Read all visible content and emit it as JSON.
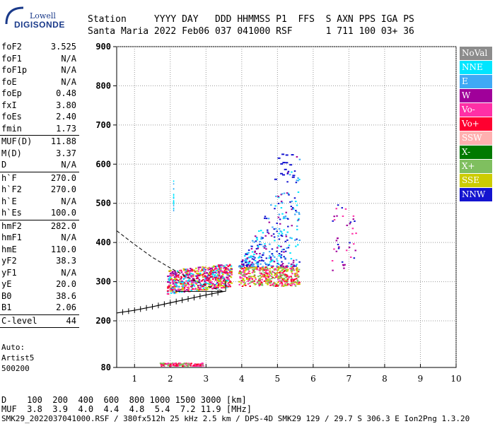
{
  "logo": {
    "line1": "Lowell",
    "line2": "DIGISONDE"
  },
  "header": {
    "columns": [
      "Station",
      "YYYY",
      "DAY",
      "DDD",
      "HHMMSS",
      "P1",
      "FFS",
      "S",
      "AXN",
      "PPS",
      "IGA",
      "PS"
    ],
    "values": [
      "Santa Maria",
      "2022",
      "Feb06",
      "037",
      "041000",
      "RSF",
      "",
      "1",
      "711",
      "100",
      "03+",
      "36"
    ]
  },
  "params": [
    {
      "name": "foF2",
      "value": "3.525"
    },
    {
      "name": "foF1",
      "value": "N/A"
    },
    {
      "name": "foF1p",
      "value": "N/A"
    },
    {
      "name": "foE",
      "value": "N/A"
    },
    {
      "name": "foEp",
      "value": "0.48"
    },
    {
      "name": "fxI",
      "value": "3.80"
    },
    {
      "name": "foEs",
      "value": "2.40"
    },
    {
      "name": "fmin",
      "value": "1.73",
      "sep": true
    },
    {
      "name": "MUF(D)",
      "value": "11.88"
    },
    {
      "name": "M(D)",
      "value": "3.37"
    },
    {
      "name": "D",
      "value": "N/A",
      "sep": true
    },
    {
      "name": "h`F",
      "value": "270.0"
    },
    {
      "name": "h`F2",
      "value": "270.0"
    },
    {
      "name": "h`E",
      "value": "N/A"
    },
    {
      "name": "h`Es",
      "value": "100.0",
      "sep": true
    },
    {
      "name": "hmF2",
      "value": "282.0"
    },
    {
      "name": "hmF1",
      "value": "N/A"
    },
    {
      "name": "hmE",
      "value": "110.0"
    },
    {
      "name": "yF2",
      "value": "38.3"
    },
    {
      "name": "yF1",
      "value": "N/A"
    },
    {
      "name": "yE",
      "value": "20.0"
    },
    {
      "name": "B0",
      "value": "38.6"
    },
    {
      "name": "B1",
      "value": "2.06",
      "sep": true
    },
    {
      "name": "C-level",
      "value": "44",
      "sep": true
    }
  ],
  "auto": {
    "line1": "Auto:",
    "line2": "Artist5",
    "line3": "500200"
  },
  "legend": [
    {
      "label": "NoVal",
      "color": "#8c8c8c"
    },
    {
      "label": "NNE",
      "color": "#00e5ff"
    },
    {
      "label": "E",
      "color": "#3fa9f5"
    },
    {
      "label": "W",
      "color": "#a0009a"
    },
    {
      "label": "Vo-",
      "color": "#ff2fa6"
    },
    {
      "label": "Vo+",
      "color": "#ff0030"
    },
    {
      "label": "SSW",
      "color": "#ffb0b0"
    },
    {
      "label": "X-",
      "color": "#007a00"
    },
    {
      "label": "X+",
      "color": "#7fbf5f"
    },
    {
      "label": "SSE",
      "color": "#cccc00"
    },
    {
      "label": "NNW",
      "color": "#1414d0"
    }
  ],
  "dm_table": {
    "d_label": "D",
    "d_values": [
      "100",
      "200",
      "400",
      "600",
      "800",
      "1000",
      "1500",
      "3000"
    ],
    "d_unit": "[km]",
    "muf_label": "MUF",
    "muf_values": [
      "3.8",
      "3.9",
      "4.0",
      "4.4",
      "4.8",
      "5.4",
      "7.2",
      "11.9"
    ],
    "muf_unit": "[MHz]"
  },
  "footer": "SMK29_2022037041000.RSF / 380fx512h 25 kHz 2.5 km / DPS-4D SMK29 129 / 29.7 S 306.3 E Ion2Png 1.3.20",
  "chart_data": {
    "type": "scatter",
    "title": "",
    "xlabel": "",
    "ylabel": "",
    "xlim": [
      0.5,
      10
    ],
    "ylim": [
      80,
      900
    ],
    "xticks": [
      "1",
      "2",
      "3",
      "4",
      "5",
      "6",
      "7",
      "8",
      "9",
      "10"
    ],
    "yticks": [
      "80",
      "200",
      "300",
      "400",
      "500",
      "600",
      "700",
      "800",
      "900"
    ],
    "grid": true,
    "profile_curve": [
      [
        0.5,
        430
      ],
      [
        1.0,
        395
      ],
      [
        1.5,
        362
      ],
      [
        2.0,
        335
      ],
      [
        2.5,
        310
      ],
      [
        3.0,
        290
      ],
      [
        3.5,
        275
      ]
    ],
    "virtual_height_trace": [
      [
        0.5,
        220
      ],
      [
        1.0,
        227
      ],
      [
        1.5,
        236
      ],
      [
        2.0,
        246
      ],
      [
        2.5,
        256
      ],
      [
        3.0,
        266
      ],
      [
        3.5,
        275
      ]
    ],
    "clusters": [
      {
        "name": "F-trace",
        "x": [
          1.9,
          3.7
        ],
        "y": [
          270,
          345
        ],
        "colors": [
          "#ff2fa6",
          "#a0009a",
          "#ff0030",
          "#cccc00",
          "#00e5ff"
        ]
      },
      {
        "name": "F-upper",
        "x": [
          3.9,
          5.6
        ],
        "y": [
          290,
          340
        ],
        "colors": [
          "#ff0030",
          "#ff2fa6",
          "#cccc00",
          "#7fbf5f"
        ]
      },
      {
        "name": "F-spread",
        "x": [
          3.9,
          5.6
        ],
        "y": [
          340,
          640
        ],
        "colors": [
          "#1414d0",
          "#a0009a",
          "#00e5ff",
          "#3fa9f5"
        ]
      },
      {
        "name": "Far",
        "x": [
          6.5,
          7.2
        ],
        "y": [
          330,
          500
        ],
        "colors": [
          "#ff2fa6",
          "#a0009a",
          "#1414d0"
        ]
      },
      {
        "name": "Es",
        "x": [
          1.7,
          2.9
        ],
        "y": [
          85,
          93
        ],
        "colors": [
          "#ff0030",
          "#7fbf5f",
          "#ff2fa6"
        ]
      }
    ]
  }
}
